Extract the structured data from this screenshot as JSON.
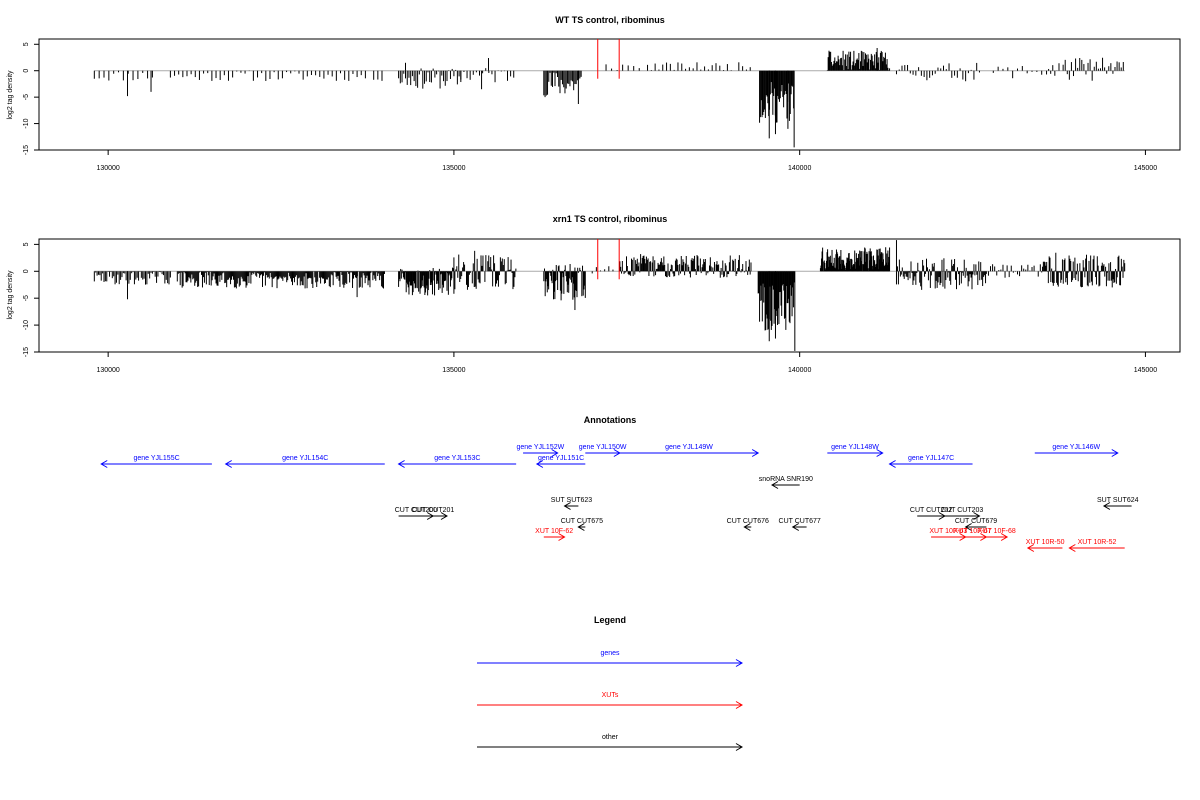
{
  "chart_data": [
    {
      "type": "bar",
      "title": "WT TS control, ribominus",
      "ylabel": "log2 tag density",
      "xlim": [
        129000,
        145500
      ],
      "ylim": [
        -15,
        6
      ],
      "x_ticks": [
        130000,
        135000,
        140000,
        145000
      ],
      "y_ticks": [
        5,
        0,
        -5,
        -10,
        -15
      ],
      "marker_lines": {
        "color": "#ff0000",
        "x": [
          137080,
          137390
        ],
        "top": 6
      },
      "baseline": {
        "x_range": [
          129800,
          144700
        ],
        "color": "#aaaaaa"
      },
      "segments": [
        {
          "range": [
            129800,
            130700
          ],
          "step": 70,
          "min": -2,
          "max": 0,
          "spikes": [
            {
              "x": 130280,
              "y": -4.8
            },
            {
              "x": 130620,
              "y": -4.0
            }
          ]
        },
        {
          "range": [
            130900,
            134000
          ],
          "step": 60,
          "min": -2,
          "max": 0
        },
        {
          "range": [
            134200,
            135100
          ],
          "step": 25,
          "min": -3.5,
          "max": 0.5,
          "spikes": [
            {
              "x": 134300,
              "y": 1.5
            }
          ]
        },
        {
          "range": [
            135100,
            135900
          ],
          "step": 45,
          "min": -2.5,
          "max": 0.8,
          "spikes": [
            {
              "x": 135500,
              "y": 2.4
            },
            {
              "x": 135400,
              "y": -3.5
            }
          ]
        },
        {
          "range": [
            136300,
            136850
          ],
          "step": 18,
          "min": -5,
          "max": 0,
          "spikes": [
            {
              "x": 136800,
              "y": -6.3
            }
          ]
        },
        {
          "range": [
            137200,
            137700
          ],
          "step": 80,
          "min": 0,
          "max": 1.6
        },
        {
          "range": [
            137800,
            139300
          ],
          "step": 55,
          "min": 0,
          "max": 1.6
        },
        {
          "range": [
            139420,
            139920
          ],
          "step": 12,
          "min": -10,
          "max": -2,
          "spikes": [
            {
              "x": 139560,
              "y": -12.8
            },
            {
              "x": 139650,
              "y": -12.0
            },
            {
              "x": 139830,
              "y": -11.0
            },
            {
              "x": 139920,
              "y": -14.5
            }
          ]
        },
        {
          "range": [
            140400,
            141300
          ],
          "step": 12,
          "min": 0,
          "max": 3.8,
          "spikes": [
            {
              "x": 141120,
              "y": 4.3
            }
          ]
        },
        {
          "range": [
            141400,
            142600
          ],
          "step": 40,
          "min": -2,
          "max": 1.5
        },
        {
          "range": [
            142800,
            143600
          ],
          "step": 70,
          "min": -1.5,
          "max": 1.2
        },
        {
          "range": [
            143600,
            144700
          ],
          "step": 30,
          "min": -2,
          "max": 2.6
        }
      ]
    },
    {
      "type": "bar",
      "title": "xrn1 TS control, ribominus",
      "ylabel": "log2 tag density",
      "xlim": [
        129000,
        145500
      ],
      "ylim": [
        -15,
        6
      ],
      "x_ticks": [
        130000,
        135000,
        140000,
        145000
      ],
      "y_ticks": [
        5,
        0,
        -5,
        -10,
        -15
      ],
      "marker_lines": {
        "color": "#ff0000",
        "x": [
          137080,
          137390
        ],
        "top": 6
      },
      "baseline": {
        "x_range": [
          129800,
          144700
        ],
        "color": "#aaaaaa"
      },
      "segments": [
        {
          "range": [
            129800,
            130900
          ],
          "step": 20,
          "min": -2.5,
          "max": 0,
          "spikes": [
            {
              "x": 130280,
              "y": -5.2
            }
          ]
        },
        {
          "range": [
            131000,
            134000
          ],
          "step": 14,
          "min": -3.2,
          "max": 0,
          "spikes": [
            {
              "x": 133600,
              "y": -4.8
            }
          ]
        },
        {
          "range": [
            134200,
            135000
          ],
          "step": 10,
          "min": -4.5,
          "max": 0.8
        },
        {
          "range": [
            135000,
            135900
          ],
          "step": 14,
          "min": -3.5,
          "max": 3.2,
          "spikes": [
            {
              "x": 135300,
              "y": 3.8
            }
          ]
        },
        {
          "range": [
            136300,
            136900
          ],
          "step": 10,
          "min": -5.5,
          "max": 1.5,
          "spikes": [
            {
              "x": 136750,
              "y": -7.2
            }
          ]
        },
        {
          "range": [
            137000,
            137300
          ],
          "step": 60,
          "min": -1,
          "max": 1.2
        },
        {
          "range": [
            137400,
            139300
          ],
          "step": 12,
          "min": -1.2,
          "max": 3.2
        },
        {
          "range": [
            139400,
            139920
          ],
          "step": 10,
          "min": -11,
          "max": -2,
          "spikes": [
            {
              "x": 139560,
              "y": -13.0
            },
            {
              "x": 139650,
              "y": -12.5
            },
            {
              "x": 139930,
              "y": -14.8
            }
          ]
        },
        {
          "range": [
            140300,
            141300
          ],
          "step": 8,
          "min": 0,
          "max": 4.5,
          "spikes": [
            {
              "x": 141400,
              "y": 5.8
            }
          ]
        },
        {
          "range": [
            141400,
            142700
          ],
          "step": 14,
          "min": -3.5,
          "max": 2.5
        },
        {
          "range": [
            142700,
            143500
          ],
          "step": 30,
          "min": -1.5,
          "max": 1.5
        },
        {
          "range": [
            143500,
            144700
          ],
          "step": 12,
          "min": -3,
          "max": 3.5
        }
      ]
    }
  ],
  "annotations": {
    "title": "Annotations",
    "items": [
      {
        "label": "gene YJL155C",
        "type": "gene",
        "start": 129900,
        "end": 131500,
        "dir": "left",
        "row": 1
      },
      {
        "label": "gene YJL154C",
        "type": "gene",
        "start": 131700,
        "end": 134000,
        "dir": "left",
        "row": 1
      },
      {
        "label": "gene YJL153C",
        "type": "gene",
        "start": 134200,
        "end": 135900,
        "dir": "left",
        "row": 1
      },
      {
        "label": "gene YJL152W",
        "type": "gene",
        "start": 136000,
        "end": 136500,
        "dir": "right",
        "row": 0
      },
      {
        "label": "gene YJL151C",
        "type": "gene",
        "start": 136200,
        "end": 136900,
        "dir": "left",
        "row": 1
      },
      {
        "label": "gene YJL150W",
        "type": "gene",
        "start": 136900,
        "end": 137400,
        "dir": "right",
        "row": 0
      },
      {
        "label": "gene YJL149W",
        "type": "gene",
        "start": 137400,
        "end": 139400,
        "dir": "right",
        "row": 0
      },
      {
        "label": "gene YJL148W",
        "type": "gene",
        "start": 140400,
        "end": 141200,
        "dir": "right",
        "row": 0
      },
      {
        "label": "gene YJL147C",
        "type": "gene",
        "start": 141300,
        "end": 142500,
        "dir": "left",
        "row": 1
      },
      {
        "label": "gene YJL146W",
        "type": "gene",
        "start": 143400,
        "end": 144600,
        "dir": "right",
        "row": 0
      },
      {
        "label": "snoRNA SNR190",
        "type": "other",
        "start": 139600,
        "end": 140000,
        "dir": "left",
        "row": 2
      },
      {
        "label": "SUT SUT623",
        "type": "other",
        "start": 136600,
        "end": 136800,
        "dir": "left",
        "row": 3
      },
      {
        "label": "SUT SUT624",
        "type": "other",
        "start": 144400,
        "end": 144800,
        "dir": "left",
        "row": 3
      },
      {
        "label": "CUT CUT200",
        "type": "other",
        "start": 134200,
        "end": 134700,
        "dir": "right",
        "row": 4
      },
      {
        "label": "CUT CUT201",
        "type": "other",
        "start": 134500,
        "end": 134900,
        "dir": "right",
        "row": 4
      },
      {
        "label": "CUT CUT202",
        "type": "other",
        "start": 141700,
        "end": 142100,
        "dir": "right",
        "row": 4
      },
      {
        "label": "CUT CUT203",
        "type": "other",
        "start": 142100,
        "end": 142600,
        "dir": "right",
        "row": 4
      },
      {
        "label": "CUT CUT675",
        "type": "other",
        "start": 136800,
        "end": 136900,
        "dir": "left",
        "row": 5
      },
      {
        "label": "CUT CUT676",
        "type": "other",
        "start": 139200,
        "end": 139300,
        "dir": "left",
        "row": 5
      },
      {
        "label": "CUT CUT677",
        "type": "other",
        "start": 139900,
        "end": 140100,
        "dir": "left",
        "row": 5
      },
      {
        "label": "CUT CUT679",
        "type": "other",
        "start": 142400,
        "end": 142700,
        "dir": "left",
        "row": 5
      },
      {
        "label": "XUT 10F-62",
        "type": "xut",
        "start": 136300,
        "end": 136600,
        "dir": "right",
        "row": 6
      },
      {
        "label": "XUT 10F-63",
        "type": "xut",
        "start": 141900,
        "end": 142400,
        "dir": "right",
        "row": 7
      },
      {
        "label": "XUT 10F-67",
        "type": "xut",
        "start": 142300,
        "end": 142700,
        "dir": "right",
        "row": 7
      },
      {
        "label": "XUT 10F-68",
        "type": "xut",
        "start": 142700,
        "end": 143000,
        "dir": "right",
        "row": 7
      },
      {
        "label": "XUT 10R-50",
        "type": "xut",
        "start": 143300,
        "end": 143800,
        "dir": "left",
        "row": 8
      },
      {
        "label": "XUT 10R-52",
        "type": "xut",
        "start": 143900,
        "end": 144700,
        "dir": "left",
        "row": 8
      }
    ]
  },
  "legend": {
    "title": "Legend",
    "items": [
      {
        "label": "genes",
        "color": "#0000ff"
      },
      {
        "label": "XUTs",
        "color": "#ff0000"
      },
      {
        "label": "other",
        "color": "#000000"
      }
    ]
  },
  "colors": {
    "gene": "#0000ff",
    "xut": "#ff0000",
    "other": "#000000"
  }
}
